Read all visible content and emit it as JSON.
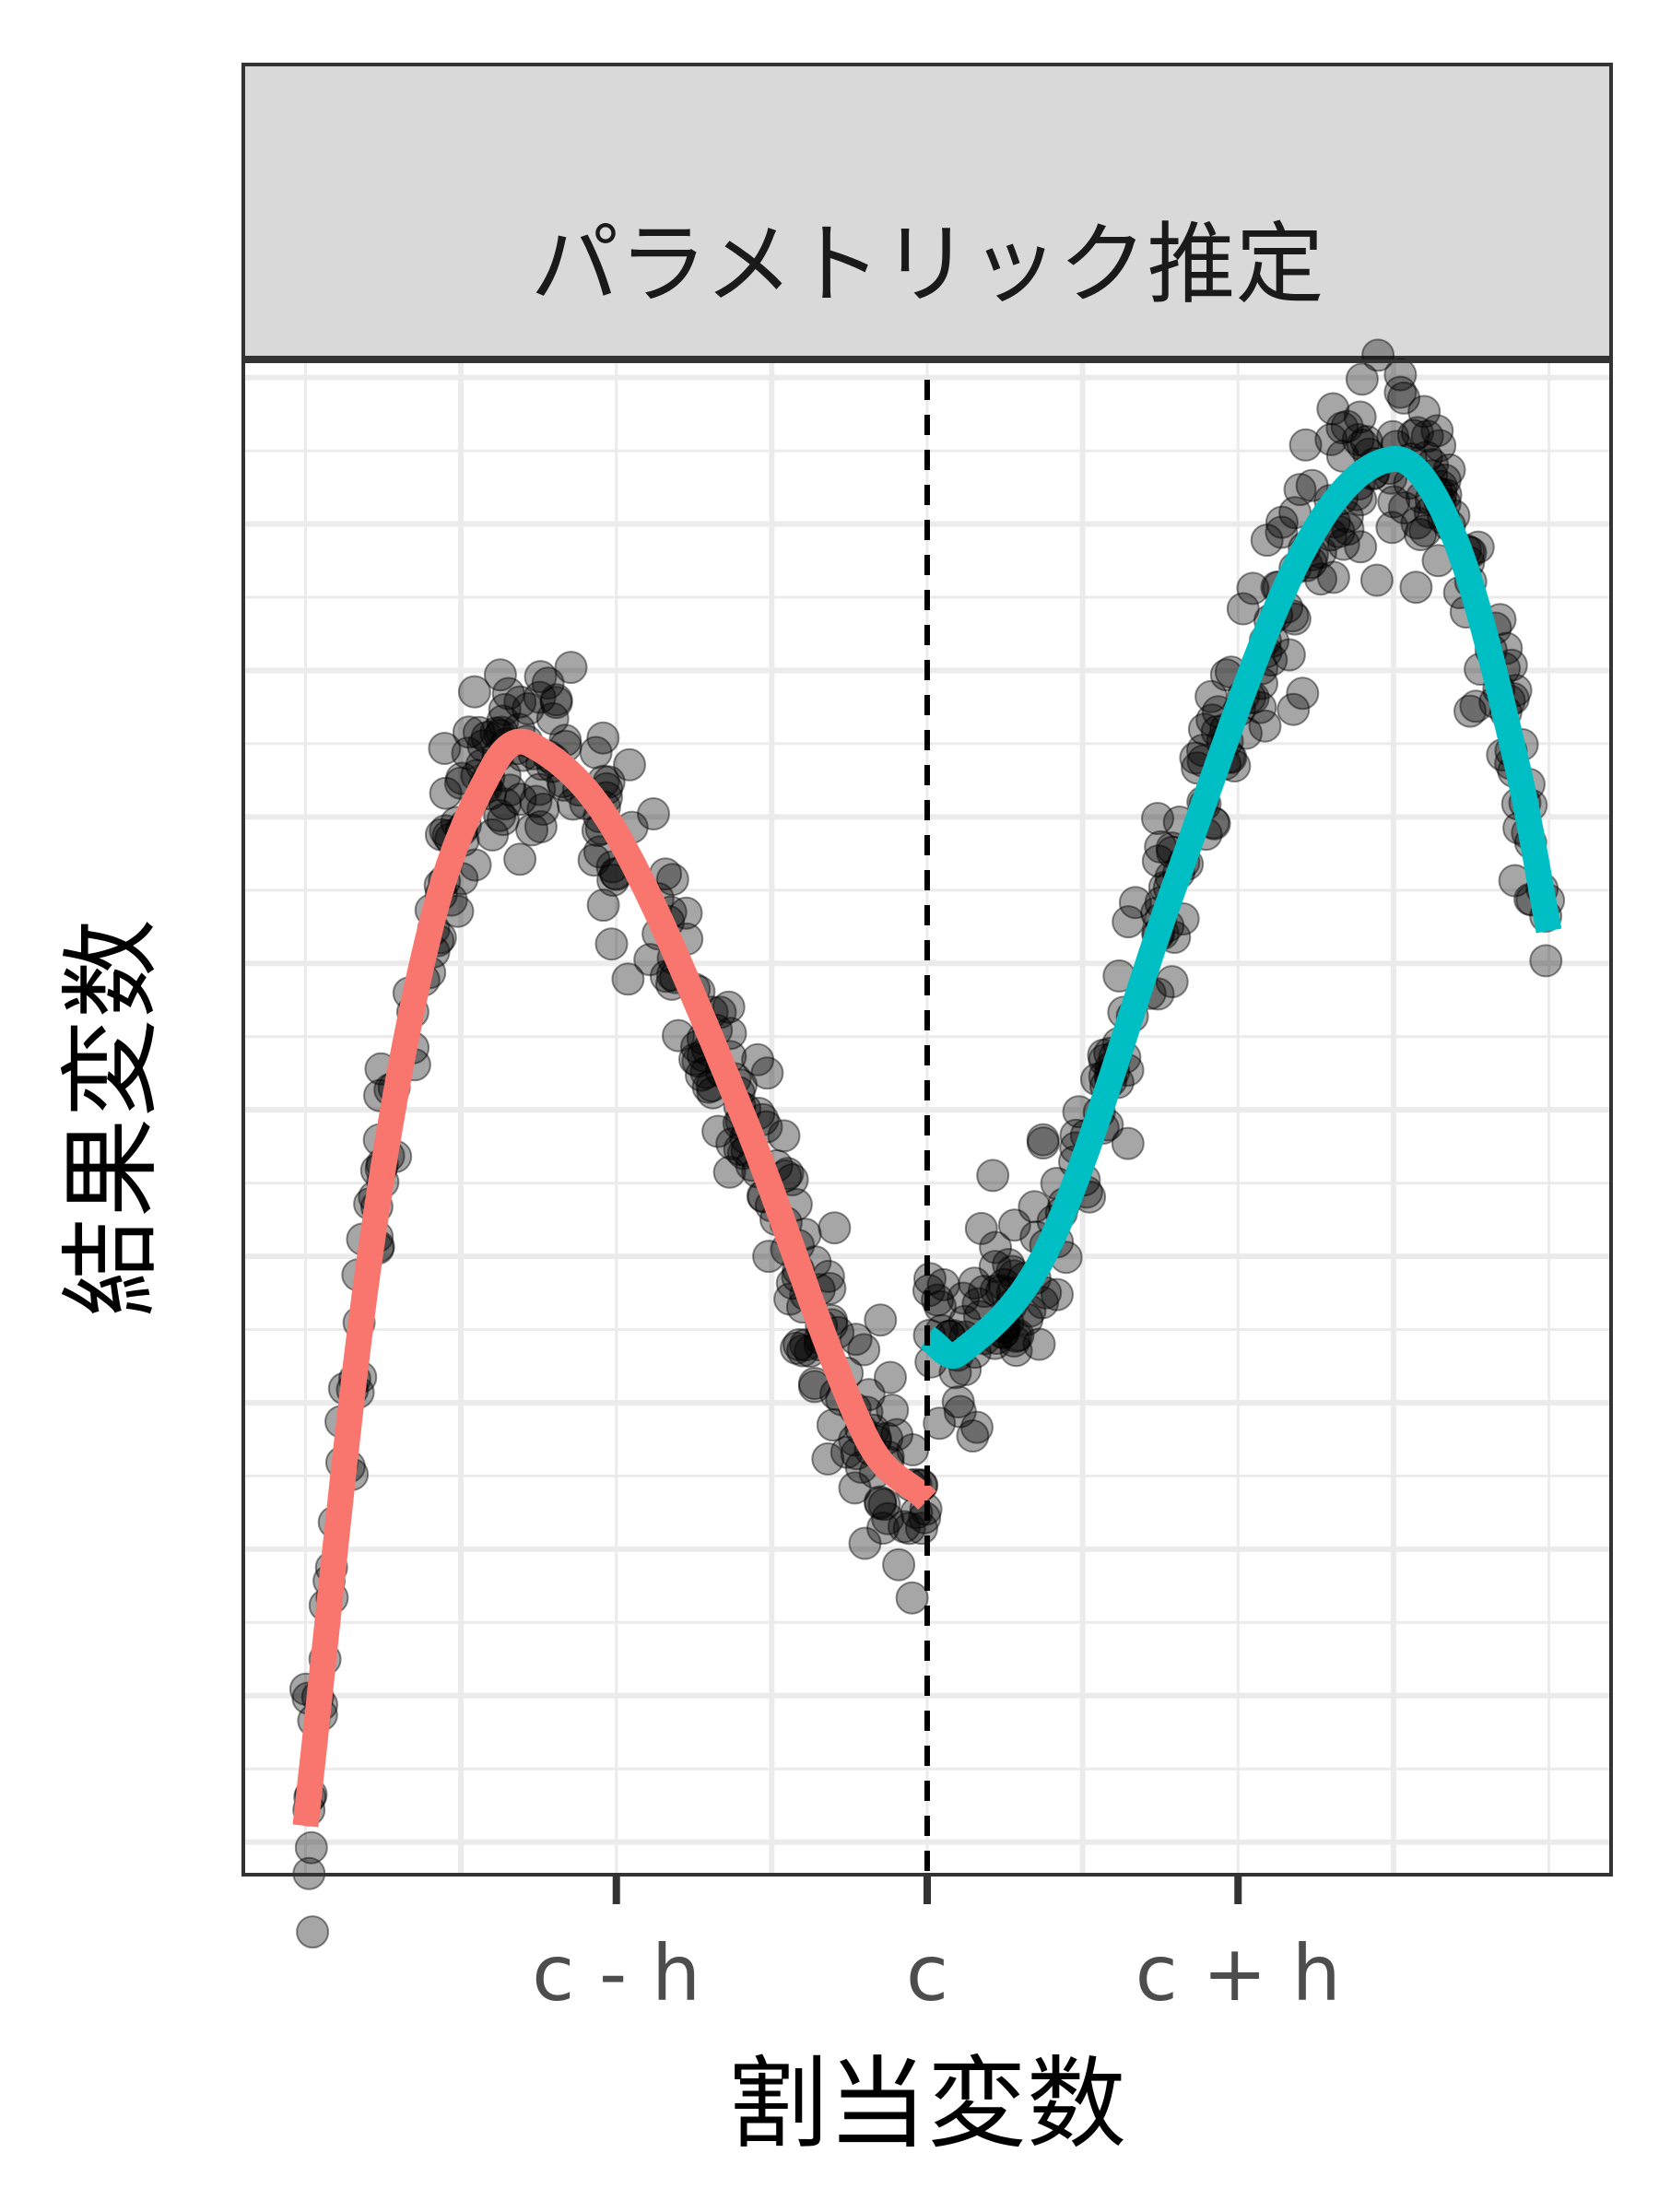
{
  "colors": {
    "background": "#ffffff",
    "panel_border": "#333333",
    "strip_fill": "#d9d9d9",
    "grid": "#ebebeb",
    "points": "#000000",
    "left_fit": "#f8766d",
    "right_fit": "#00bfc4",
    "cutoff_line": "#000000"
  },
  "chart_data": {
    "type": "scatter",
    "facet_label": "パラメトリック推定",
    "xlabel": "割当変数",
    "ylabel": "結果変数",
    "x_ticks": [
      {
        "value": -0.5,
        "label": "c - h"
      },
      {
        "value": 0,
        "label": "c"
      },
      {
        "value": 0.5,
        "label": "c + h"
      }
    ],
    "y_tick_labels": [],
    "xlim": [
      -1.1,
      1.1
    ],
    "ylim": [
      -0.2,
      9.1
    ],
    "grid": true,
    "cutoff": {
      "x": 0,
      "style": "dashed"
    },
    "fits": [
      {
        "side": "left",
        "x_range": [
          -1.0,
          0.0
        ],
        "anchors": [
          [
            -1.0,
            0.1
          ],
          [
            -0.9,
            3.5
          ],
          [
            -0.8,
            5.6
          ],
          [
            -0.7,
            6.6
          ],
          [
            -0.64,
            6.75
          ],
          [
            -0.5,
            6.2
          ],
          [
            -0.3,
            4.5
          ],
          [
            -0.1,
            2.5
          ],
          [
            0.0,
            2.1
          ]
        ]
      },
      {
        "side": "right",
        "x_range": [
          0.0,
          1.0
        ],
        "anchors": [
          [
            0.0,
            3.1
          ],
          [
            0.05,
            3.0
          ],
          [
            0.2,
            3.7
          ],
          [
            0.4,
            5.9
          ],
          [
            0.6,
            7.9
          ],
          [
            0.75,
            8.5
          ],
          [
            0.85,
            8.0
          ],
          [
            0.95,
            6.6
          ],
          [
            1.0,
            5.6
          ]
        ]
      }
    ],
    "points": {
      "count_per_side": 300,
      "noise_sd": 0.3,
      "opacity": 0.35,
      "note_points_follow": "left_fit and right_fit curves"
    }
  }
}
